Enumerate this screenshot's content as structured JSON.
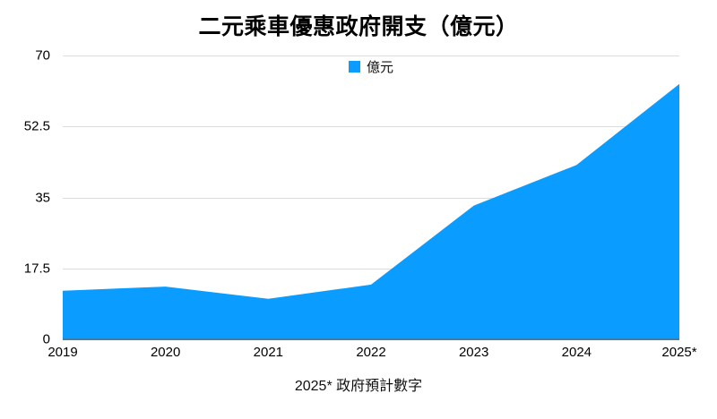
{
  "chart_data": {
    "type": "area",
    "title": "二元乘車優惠政府開支（億元）",
    "categories": [
      "2019",
      "2020",
      "2021",
      "2022",
      "2023",
      "2024",
      "2025*"
    ],
    "series": [
      {
        "name": "億元",
        "values": [
          12,
          13,
          10,
          13.5,
          33,
          43,
          63
        ]
      }
    ],
    "ylim": [
      0,
      70
    ],
    "yticks": [
      0,
      17.5,
      35,
      52.5,
      70
    ],
    "ytick_labels": [
      "0",
      "17.5",
      "35",
      "52.5",
      "70"
    ],
    "grid": true,
    "legend": [
      {
        "label": "億元",
        "color": "#0a9cff"
      }
    ],
    "legend_position": "top-center",
    "footnote": "2025* 政府預計數字",
    "colors": {
      "area_fill": "#0a9cff",
      "baseline": "#3b7fb0",
      "gridline": "#dcdcdc",
      "text": "#000000",
      "background": "#ffffff"
    }
  }
}
